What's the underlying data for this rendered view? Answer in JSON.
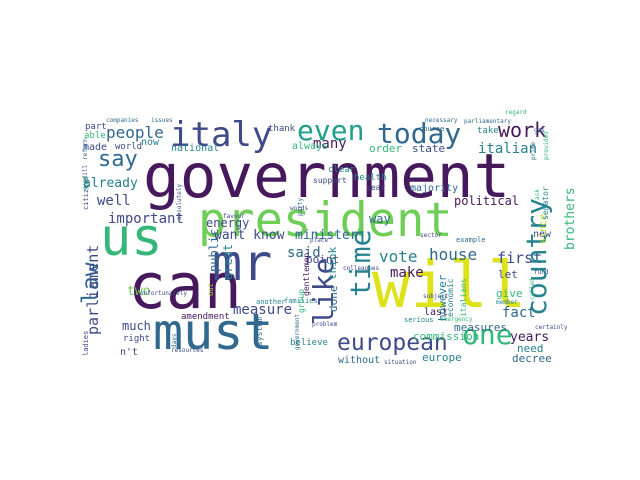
{
  "palette": {
    "dark_purple": "#46185c",
    "indigo": "#3e4a89",
    "blue": "#31688e",
    "teal": "#26828e",
    "green_teal": "#1f9e89",
    "green": "#35b779",
    "light_green": "#6ece58",
    "lime": "#b5de2b",
    "yellow": "#dde318"
  },
  "words": [
    {
      "id": "government",
      "text": "government",
      "color": "dark_purple"
    },
    {
      "id": "president",
      "text": "president",
      "color": "light_green"
    },
    {
      "id": "will",
      "text": "will",
      "color": "yellow"
    },
    {
      "id": "us",
      "text": "us",
      "color": "green"
    },
    {
      "id": "can",
      "text": "can",
      "color": "dark_purple"
    },
    {
      "id": "must",
      "text": "must",
      "color": "blue"
    },
    {
      "id": "mr",
      "text": "mr",
      "color": "indigo"
    },
    {
      "id": "italy",
      "text": "italy",
      "color": "indigo"
    },
    {
      "id": "today",
      "text": "today",
      "color": "blue"
    },
    {
      "id": "even",
      "text": "even",
      "color": "green_teal"
    },
    {
      "id": "work",
      "text": "work",
      "color": "dark_purple"
    },
    {
      "id": "one",
      "text": "one",
      "color": "green"
    },
    {
      "id": "european",
      "text": "european",
      "color": "indigo"
    },
    {
      "id": "country",
      "text": "country",
      "color": "teal"
    },
    {
      "id": "time",
      "text": "time",
      "color": "teal"
    },
    {
      "id": "like",
      "text": "like",
      "color": "indigo"
    },
    {
      "id": "say",
      "text": "say",
      "color": "blue"
    },
    {
      "id": "law",
      "text": "law",
      "color": "blue"
    },
    {
      "id": "people",
      "text": "people",
      "color": "blue"
    },
    {
      "id": "many",
      "text": "many",
      "color": "dark_purple"
    },
    {
      "id": "italian",
      "text": "italian",
      "color": "teal"
    },
    {
      "id": "important",
      "text": "important",
      "color": "indigo"
    },
    {
      "id": "want_know",
      "text": "want know",
      "color": "indigo"
    },
    {
      "id": "minister",
      "text": "minister",
      "color": "blue"
    },
    {
      "id": "parliament",
      "text": "parliament",
      "color": "indigo"
    },
    {
      "id": "vote",
      "text": "vote",
      "color": "teal"
    },
    {
      "id": "house",
      "text": "house",
      "color": "blue"
    },
    {
      "id": "first",
      "text": "first",
      "color": "indigo"
    },
    {
      "id": "make",
      "text": "make",
      "color": "dark_purple"
    },
    {
      "id": "fact",
      "text": "fact",
      "color": "blue"
    },
    {
      "id": "said",
      "text": "said",
      "color": "blue"
    },
    {
      "id": "well",
      "text": "well",
      "color": "indigo"
    },
    {
      "id": "already",
      "text": "already",
      "color": "teal"
    },
    {
      "id": "measure",
      "text": "measure",
      "color": "indigo"
    },
    {
      "id": "years",
      "text": "years",
      "color": "dark_purple"
    },
    {
      "id": "energy",
      "text": "energy",
      "color": "indigo"
    },
    {
      "id": "political",
      "text": "political",
      "color": "dark_purple"
    },
    {
      "id": "brothers",
      "text": "brothers",
      "color": "green"
    },
    {
      "id": "commission",
      "text": "commission",
      "color": "green"
    },
    {
      "id": "measures",
      "text": "measures",
      "color": "blue"
    },
    {
      "id": "need",
      "text": "need",
      "color": "teal"
    },
    {
      "id": "decree",
      "text": "decree",
      "color": "blue"
    },
    {
      "id": "much",
      "text": "much",
      "color": "indigo"
    },
    {
      "id": "two",
      "text": "two",
      "color": "light_green"
    },
    {
      "id": "public",
      "text": "public",
      "color": "blue"
    },
    {
      "id": "great",
      "text": "great",
      "color": "teal"
    },
    {
      "id": "think",
      "text": "think",
      "color": "teal"
    },
    {
      "id": "point",
      "text": "point",
      "color": "indigo"
    },
    {
      "id": "done",
      "text": "done",
      "color": "blue"
    },
    {
      "id": "way",
      "text": "way",
      "color": "blue"
    },
    {
      "id": "let",
      "text": "let",
      "color": "indigo"
    },
    {
      "id": "give",
      "text": "give",
      "color": "green"
    },
    {
      "id": "however",
      "text": "however",
      "color": "teal"
    },
    {
      "id": "europe",
      "text": "europe",
      "color": "teal"
    },
    {
      "id": "without",
      "text": "without",
      "color": "blue"
    },
    {
      "id": "majority",
      "text": "majority",
      "color": "blue"
    },
    {
      "id": "state",
      "text": "state",
      "color": "indigo"
    },
    {
      "id": "order",
      "text": "order",
      "color": "green"
    },
    {
      "id": "always",
      "text": "always",
      "color": "green"
    },
    {
      "id": "national",
      "text": "national",
      "color": "teal"
    },
    {
      "id": "made",
      "text": "made",
      "color": "indigo"
    },
    {
      "id": "now",
      "text": "now",
      "color": "teal"
    },
    {
      "id": "part",
      "text": "part",
      "color": "indigo"
    },
    {
      "id": "able",
      "text": "able",
      "color": "green"
    },
    {
      "id": "world",
      "text": "world",
      "color": "indigo"
    },
    {
      "id": "thank",
      "text": "thank",
      "color": "indigo"
    },
    {
      "id": "take",
      "text": "take",
      "color": "teal"
    },
    {
      "id": "new",
      "text": "new",
      "color": "indigo"
    },
    {
      "id": "right",
      "text": "right",
      "color": "indigo"
    },
    {
      "id": "ladies",
      "text": "ladies",
      "color": "indigo"
    },
    {
      "id": "nt",
      "text": "n't",
      "color": "indigo"
    },
    {
      "id": "system",
      "text": "system",
      "color": "blue"
    },
    {
      "id": "amendment",
      "text": "amendment",
      "color": "dark_purple"
    },
    {
      "id": "believe",
      "text": "believe",
      "color": "teal"
    },
    {
      "id": "last",
      "text": "last",
      "color": "dark_purple"
    },
    {
      "id": "economic",
      "text": "economic",
      "color": "teal"
    },
    {
      "id": "italians",
      "text": "italians",
      "color": "green"
    },
    {
      "id": "health",
      "text": "health",
      "color": "teal"
    },
    {
      "id": "clear",
      "text": "clear",
      "color": "teal"
    },
    {
      "id": "group",
      "text": "group",
      "color": "green"
    },
    {
      "id": "since",
      "text": "since",
      "color": "lime"
    },
    {
      "id": "gentlemen",
      "text": "gentlemen",
      "color": "dark_purple"
    },
    {
      "id": "senator",
      "text": "senator",
      "color": "teal"
    },
    {
      "id": "support",
      "text": "support",
      "color": "indigo"
    },
    {
      "id": "year",
      "text": "year",
      "color": "indigo"
    },
    {
      "id": "course",
      "text": "course",
      "color": "blue"
    },
    {
      "id": "necessary",
      "text": "necessary",
      "color": "blue"
    },
    {
      "id": "parliamentary",
      "text": "parliamentary",
      "color": "blue"
    },
    {
      "id": "companies",
      "text": "companies",
      "color": "blue"
    },
    {
      "id": "issues",
      "text": "issues",
      "color": "blue"
    },
    {
      "id": "regard",
      "text": "regard",
      "color": "green"
    },
    {
      "id": "citizens",
      "text": "citizens",
      "color": "indigo"
    },
    {
      "id": "another",
      "text": "another",
      "color": "teal"
    },
    {
      "id": "families",
      "text": "families",
      "color": "teal"
    },
    {
      "id": "out",
      "text": "out",
      "color": "lime"
    },
    {
      "id": "sector",
      "text": "sector",
      "color": "indigo"
    },
    {
      "id": "serious",
      "text": "serious",
      "color": "teal"
    },
    {
      "id": "example",
      "text": "example",
      "color": "blue"
    },
    {
      "id": "emergency",
      "text": "emergency",
      "color": "green"
    },
    {
      "id": "certainly",
      "text": "certainly",
      "color": "indigo"
    },
    {
      "id": "place",
      "text": "place",
      "color": "indigo"
    },
    {
      "id": "colleagues",
      "text": "colleagues",
      "color": "indigo"
    },
    {
      "id": "problem",
      "text": "problem",
      "color": "indigo"
    },
    {
      "id": "subject",
      "text": "subject",
      "color": "indigo"
    },
    {
      "id": "reform",
      "text": "reform",
      "color": "blue"
    },
    {
      "id": "government_s",
      "text": "government",
      "color": "blue"
    },
    {
      "id": "party",
      "text": "party",
      "color": "blue"
    },
    {
      "id": "ask",
      "text": "ask",
      "color": "green"
    },
    {
      "id": "still",
      "text": "still",
      "color": "indigo"
    },
    {
      "id": "good",
      "text": "good",
      "color": "green"
    },
    {
      "id": "unfortunately",
      "text": "unfortunately",
      "color": "indigo"
    },
    {
      "id": "called",
      "text": "called",
      "color": "green"
    },
    {
      "id": "resources",
      "text": "resources",
      "color": "indigo"
    },
    {
      "id": "favour",
      "text": "favour",
      "color": "indigo"
    },
    {
      "id": "gas",
      "text": "gas",
      "color": "blue"
    },
    {
      "id": "absolutely",
      "text": "absolutely",
      "color": "indigo"
    },
    {
      "id": "words",
      "text": "words",
      "color": "indigo"
    },
    {
      "id": "prime",
      "text": "prime",
      "color": "blue"
    },
    {
      "id": "member",
      "text": "member",
      "color": "teal"
    },
    {
      "id": "provided",
      "text": "provided",
      "color": "green"
    },
    {
      "id": "situation",
      "text": "situation",
      "color": "indigo"
    },
    {
      "id": "days",
      "text": "days",
      "color": "blue"
    },
    {
      "id": "fund",
      "text": "fund",
      "color": "indigo"
    }
  ]
}
